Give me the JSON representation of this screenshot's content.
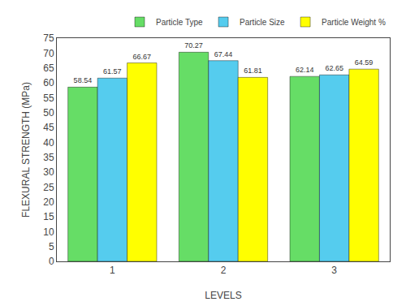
{
  "chart_data": {
    "type": "bar",
    "x_label": "LEVELS",
    "y_label": "FLEXURAL STRENGTH (MPa)",
    "categories": [
      "1",
      "2",
      "3"
    ],
    "series": [
      {
        "name": "Particle Type",
        "color": "#66dd66",
        "values": [
          58.54,
          70.27,
          62.14
        ]
      },
      {
        "name": "Particle Size",
        "color": "#55ccee",
        "values": [
          61.57,
          67.44,
          62.65
        ]
      },
      {
        "name": "Particle Weight %",
        "color": "#ffff00",
        "values": [
          66.67,
          61.81,
          64.59
        ]
      }
    ],
    "ylim": [
      0,
      75
    ],
    "yticks": [
      0,
      5,
      10,
      15,
      20,
      25,
      30,
      35,
      40,
      45,
      50,
      55,
      60,
      65,
      70,
      75
    ],
    "grid": false,
    "legend": "upper right",
    "data_labels": true
  }
}
